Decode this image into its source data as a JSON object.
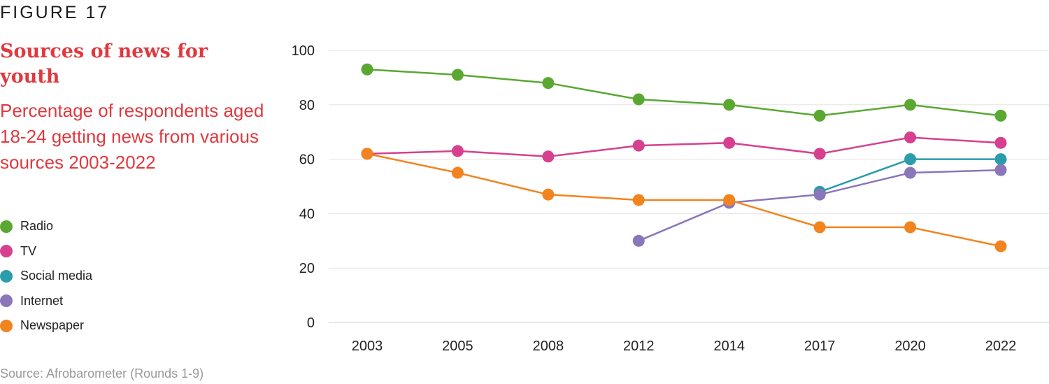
{
  "figure_label": "FIGURE 17",
  "title": "Sources of news for youth",
  "subtitle": "Percentage of respondents aged 18-24 getting news from various sources 2003-2022",
  "source": "Source: Afrobarometer (Rounds 1-9)",
  "chart_data": {
    "type": "line",
    "categories": [
      "2003",
      "2005",
      "2008",
      "2012",
      "2014",
      "2017",
      "2020",
      "2022"
    ],
    "ylim": [
      0,
      100
    ],
    "yticks": [
      0,
      20,
      40,
      60,
      80,
      100
    ],
    "grid": true,
    "legend_position": "left",
    "series": [
      {
        "name": "Radio",
        "color": "#5aa832",
        "values": [
          93,
          91,
          88,
          82,
          80,
          76,
          80,
          76
        ]
      },
      {
        "name": "TV",
        "color": "#d6408e",
        "values": [
          62,
          63,
          61,
          65,
          66,
          62,
          68,
          66
        ]
      },
      {
        "name": "Social media",
        "color": "#2a9cab",
        "values": [
          null,
          null,
          null,
          null,
          null,
          48,
          60,
          60
        ]
      },
      {
        "name": "Internet",
        "color": "#8a76b8",
        "values": [
          null,
          null,
          null,
          30,
          44,
          47,
          55,
          56
        ]
      },
      {
        "name": "Newspaper",
        "color": "#f2841f",
        "values": [
          62,
          55,
          47,
          45,
          45,
          35,
          35,
          28
        ]
      }
    ]
  }
}
